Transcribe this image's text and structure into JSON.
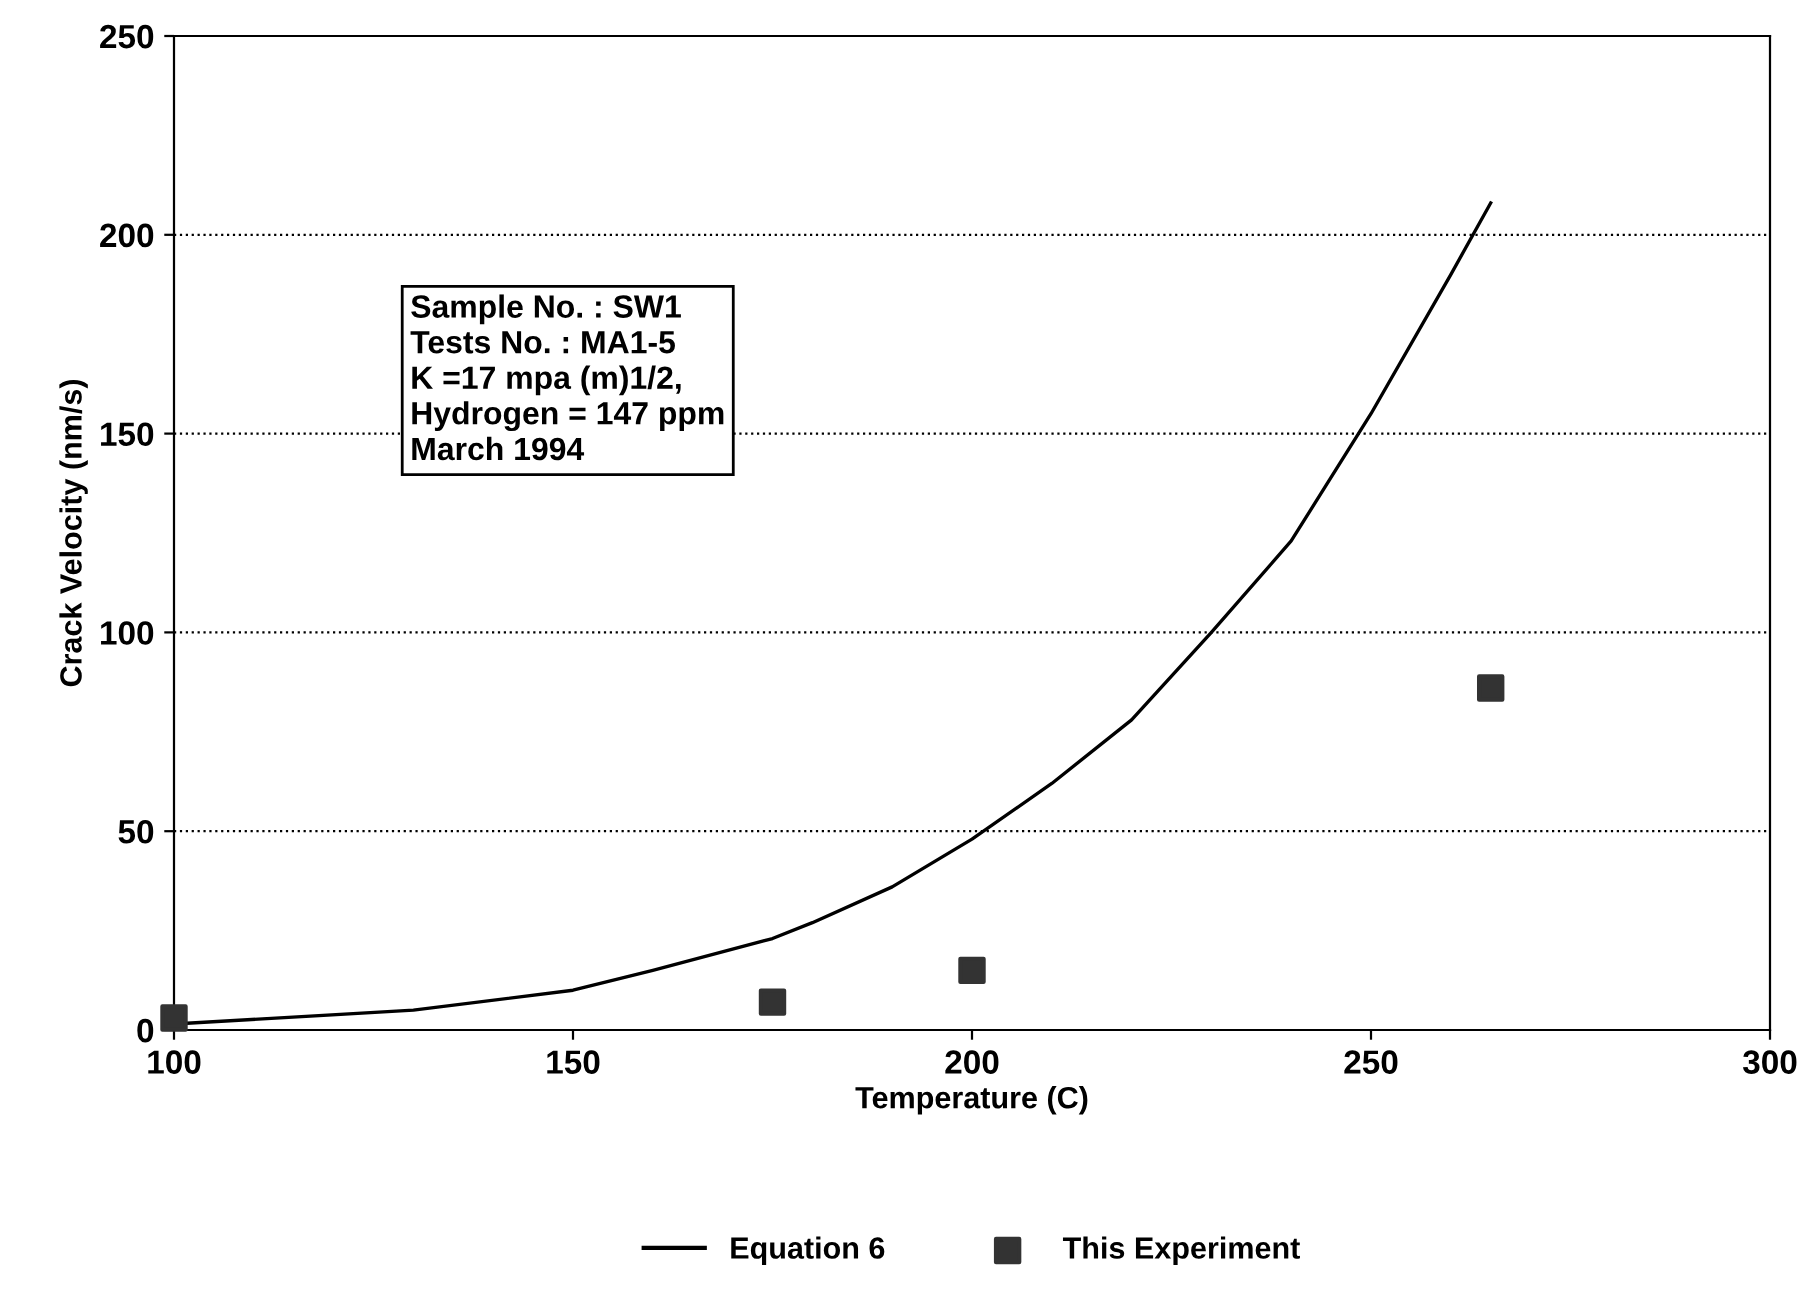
{
  "chart_data": {
    "type": "line",
    "xlabel": "Temperature (C)",
    "ylabel": "Crack Velocity (nm/s)",
    "xlim": [
      100,
      300
    ],
    "xticks": [
      100,
      150,
      200,
      250,
      300
    ],
    "ylim": [
      0,
      250
    ],
    "yticks": [
      0,
      50,
      100,
      150,
      200,
      250
    ],
    "grid": "y",
    "legend": "bottom",
    "marker": "none",
    "annotations": [
      "Sample No. : SW1\nTests No. : MA1-5\nK =17 mpa (m)1/2,\nHydrogen = 147 ppm\nMarch 1994"
    ],
    "series": [
      {
        "name": "Equation 6",
        "color": "#000000",
        "line_style": "solid",
        "x": [
          100,
          130,
          150,
          160,
          175,
          180,
          190,
          200,
          210,
          220,
          230,
          240,
          250,
          260,
          265
        ],
        "values": [
          1.5,
          5,
          10,
          15,
          23,
          27,
          36,
          48,
          62,
          78,
          100,
          123,
          155,
          190,
          208
        ]
      },
      {
        "name": "This Experiment",
        "type": "scatter",
        "color": "#333333",
        "marker": "square",
        "x": [
          100,
          175,
          200,
          265
        ],
        "values": [
          3,
          7,
          15,
          86
        ]
      }
    ]
  }
}
